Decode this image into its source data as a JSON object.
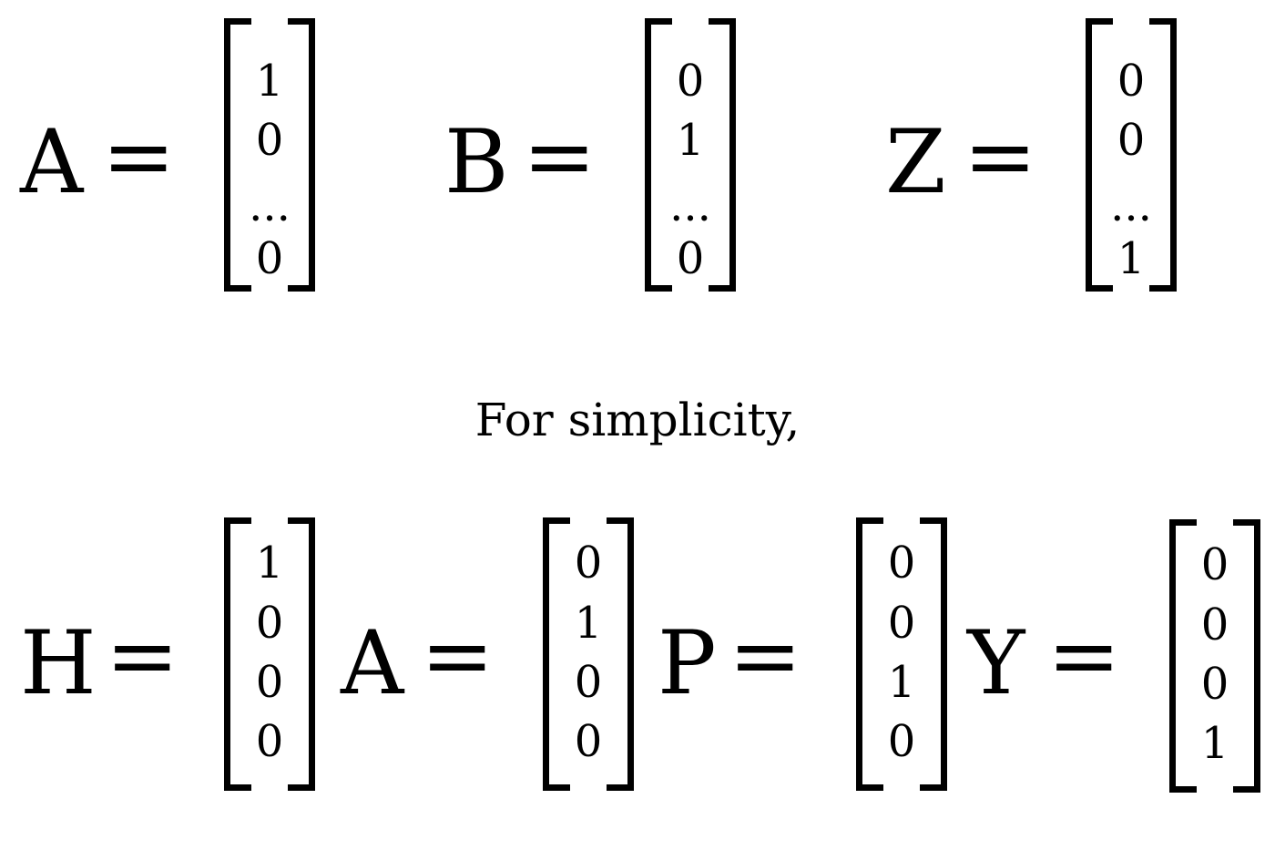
{
  "caption": "For simplicity,",
  "top_row": [
    {
      "label": "A",
      "equals": "=",
      "entries": [
        "1",
        "0",
        "...",
        "0"
      ]
    },
    {
      "label": "B",
      "equals": "=",
      "entries": [
        "0",
        "1",
        "...",
        "0"
      ]
    },
    {
      "label": "Z",
      "equals": "=",
      "entries": [
        "0",
        "0",
        "...",
        "1"
      ]
    }
  ],
  "bottom_row": [
    {
      "label": "H",
      "equals": "=",
      "entries": [
        "1",
        "0",
        "0",
        "0"
      ]
    },
    {
      "label": "A",
      "equals": "=",
      "entries": [
        "0",
        "1",
        "0",
        "0"
      ]
    },
    {
      "label": "P",
      "equals": "=",
      "entries": [
        "0",
        "0",
        "1",
        "0"
      ]
    },
    {
      "label": "Y",
      "equals": "=",
      "entries": [
        "0",
        "0",
        "0",
        "1"
      ]
    }
  ]
}
